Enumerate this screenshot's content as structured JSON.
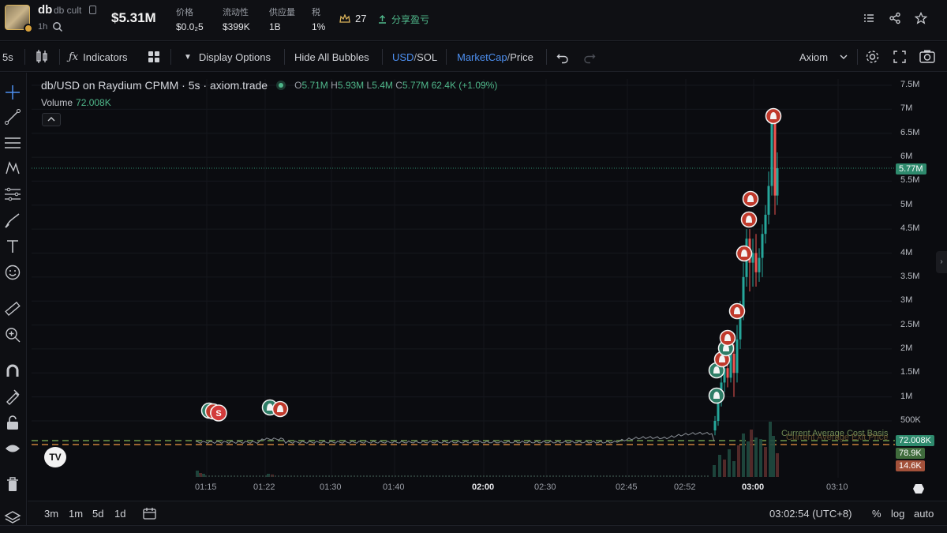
{
  "header": {
    "symbol": "db",
    "name": "db cult",
    "age": "1h",
    "market_cap": "$5.31M",
    "stats": [
      {
        "label": "价格",
        "value": "$0.0₂5"
      },
      {
        "label": "流动性",
        "value": "$399K"
      },
      {
        "label": "供应量",
        "value": "1B"
      },
      {
        "label": "税",
        "value": "1%"
      }
    ],
    "holders": "27",
    "share_pnl": "分享盈亏"
  },
  "toolbar": {
    "interval": "5s",
    "indicators": "Indicators",
    "display_options": "Display Options",
    "hide_bubbles": "Hide All Bubbles",
    "usd": "USD",
    "slash": "/",
    "sol": "SOL",
    "marketcap": "MarketCap",
    "price": "Price",
    "source": "Axiom"
  },
  "legend": {
    "title": "db/USD on Raydium CPMM · 5s · axiom.trade",
    "o_label": "O",
    "o": "5.71M",
    "h_label": "H",
    "h": "5.93M",
    "l_label": "L",
    "l": "5.4M",
    "c_label": "C",
    "c": "5.77M",
    "change": "62.4K (+1.09%)",
    "volume_label": "Volume",
    "volume": "72.008K"
  },
  "chart_data": {
    "type": "candlestick",
    "y_axis_ticks": [
      "7.5M",
      "7M",
      "6.5M",
      "6M",
      "5.5M",
      "5M",
      "4.5M",
      "4M",
      "3.5M",
      "3M",
      "2.5M",
      "2M",
      "1.5M",
      "1M",
      "500K"
    ],
    "x_axis_ticks": [
      "01:15",
      "01:22",
      "01:30",
      "01:40",
      "02:00",
      "02:30",
      "02:45",
      "02:52",
      "03:00",
      "03:10"
    ],
    "bold_x_ticks": [
      "02:00",
      "03:00"
    ],
    "last_price_tag": "5.77M",
    "volume_tag": "72.008K",
    "green_tag": "78.9K",
    "red_tag": "14.6K",
    "cost_basis_label": "Current Average Cost Basis",
    "exit_price_label": "Current Average Exit Price",
    "colors": {
      "up": "#26a69a",
      "down": "#ef5350",
      "accent": "#4d8ff0"
    }
  },
  "bubbles": {
    "sell_letter": "S"
  },
  "bottombar": {
    "ranges": [
      "3m",
      "1m",
      "5d",
      "1d"
    ],
    "clock": "03:02:54 (UTC+8)",
    "pct": "%",
    "log": "log",
    "auto": "auto"
  }
}
